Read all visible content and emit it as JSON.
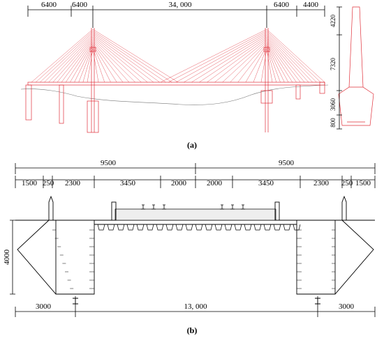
{
  "figure_a": {
    "top_dimensions": [
      "6400",
      "6400",
      "34, 000",
      "6400",
      "4400"
    ],
    "side_dimensions": [
      "4220",
      "7320",
      "3060",
      "800"
    ],
    "caption": "(a)"
  },
  "figure_b": {
    "overall_dimensions": [
      "9500",
      "9500"
    ],
    "detail_dimensions": [
      "1500",
      "250",
      "2300",
      "3450",
      "2000",
      "2000",
      "3450",
      "2300",
      "250",
      "1500"
    ],
    "height_dimension": "4000",
    "bottom_dimensions": [
      "3000",
      "13, 000",
      "3000"
    ],
    "caption": "(b)"
  }
}
